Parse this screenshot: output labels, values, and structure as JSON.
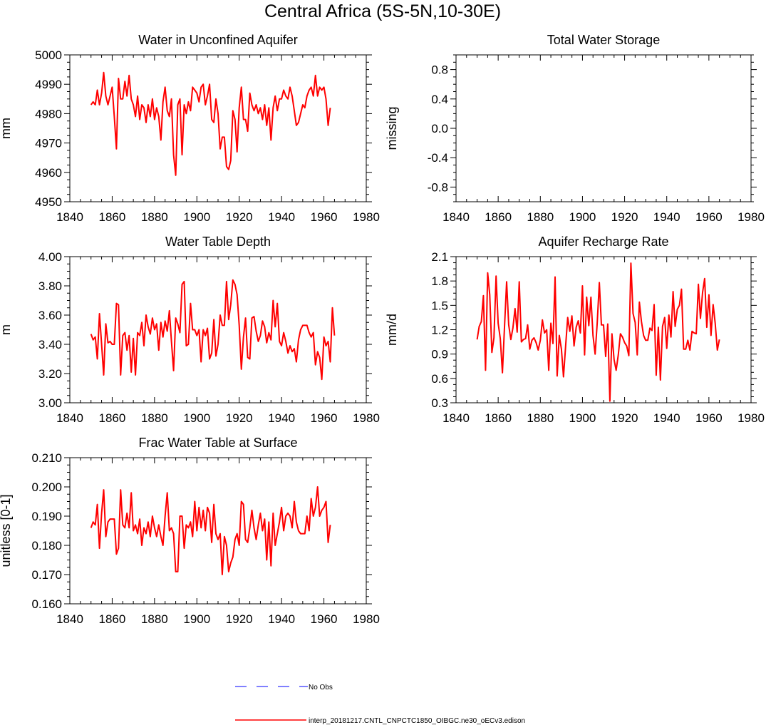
{
  "page_title": "Central Africa (5S-5N,10-30E)",
  "colors": {
    "model": "#ff0000",
    "obs": "#0000ff",
    "axis": "#000000"
  },
  "legend": {
    "obs_label": "No Obs",
    "model_label": "interp_20181217.CNTL_CNPCTC1850_OIBGC.ne30_oECv3.edison"
  },
  "chart_data": [
    {
      "id": "wa",
      "type": "line",
      "title": "Water in Unconfined Aquifer",
      "ylabel": "mm",
      "xlabel": "",
      "xlim": [
        1840,
        1980
      ],
      "ylim": [
        4950,
        5000
      ],
      "x_ticks": [
        1840,
        1860,
        1880,
        1900,
        1920,
        1940,
        1960,
        1980
      ],
      "x_tick_labels": [
        "1840",
        "1860",
        "1880",
        "1900",
        "1920",
        "1940",
        "1960",
        "1980"
      ],
      "y_ticks": [
        4950,
        4960,
        4970,
        4980,
        4990,
        5000
      ],
      "y_tick_labels": [
        "4950",
        "4960",
        "4970",
        "4980",
        "4990",
        "5000"
      ],
      "x_start": 1850,
      "series": [
        {
          "name": "interp_20181217.CNTL_CNPCTC1850_OIBGC.ne30_oECv3.edison",
          "values": [
            4983,
            4984,
            4983,
            4988,
            4983,
            4987,
            4994,
            4986,
            4983,
            4986,
            4989,
            4979,
            4968,
            4992,
            4985,
            4985,
            4991,
            4986,
            4993,
            4985,
            4983,
            4979,
            4986,
            4978,
            4983,
            4982,
            4977,
            4983,
            4979,
            4985,
            4978,
            4982,
            4979,
            4971,
            4984,
            4989,
            4981,
            4979,
            4985,
            4966,
            4959,
            4983,
            4985,
            4966,
            4983,
            4980,
            4984,
            4981,
            4989,
            4988,
            4987,
            4984,
            4989,
            4990,
            4983,
            4986,
            4990,
            4978,
            4977,
            4985,
            4980,
            4968,
            4972,
            4972,
            4962,
            4961,
            4964,
            4981,
            4978,
            4967,
            4982,
            4989,
            4978,
            4978,
            4974,
            4987,
            4983,
            4981,
            4983,
            4980,
            4982,
            4978,
            4983,
            4976,
            4982,
            4971,
            4982,
            4986,
            4981,
            4985,
            4985,
            4988,
            4986,
            4985,
            4989,
            4986,
            4981,
            4976,
            4977,
            4980,
            4983,
            4982,
            4986,
            4988,
            4989,
            4986,
            4993,
            4986,
            4989,
            4988,
            4989,
            4985,
            4976,
            4982
          ]
        }
      ]
    },
    {
      "id": "tws",
      "type": "line",
      "title": "Total Water Storage",
      "ylabel": "missing",
      "xlabel": "",
      "xlim": [
        1840,
        1980
      ],
      "ylim": [
        -1,
        1
      ],
      "x_ticks": [
        1840,
        1860,
        1880,
        1900,
        1920,
        1940,
        1960,
        1980
      ],
      "x_tick_labels": [
        "1840",
        "1860",
        "1880",
        "1900",
        "1920",
        "1940",
        "1960",
        "1980"
      ],
      "y_ticks": [
        -0.8,
        -0.4,
        0.0,
        0.4,
        0.8
      ],
      "y_tick_labels": [
        "-0.8",
        "-0.4",
        "0.0",
        "0.4",
        "0.8"
      ],
      "x_start": 1850,
      "series": []
    },
    {
      "id": "zwt",
      "type": "line",
      "title": "Water Table Depth",
      "ylabel": "m",
      "xlabel": "",
      "xlim": [
        1840,
        1980
      ],
      "ylim": [
        3.0,
        4.0
      ],
      "x_ticks": [
        1840,
        1860,
        1880,
        1900,
        1920,
        1940,
        1960,
        1980
      ],
      "x_tick_labels": [
        "1840",
        "1860",
        "1880",
        "1900",
        "1920",
        "1940",
        "1960",
        "1980"
      ],
      "y_ticks": [
        3.0,
        3.2,
        3.4,
        3.6,
        3.8,
        4.0
      ],
      "y_tick_labels": [
        "3.00",
        "3.20",
        "3.40",
        "3.60",
        "3.80",
        "4.00"
      ],
      "x_start": 1850,
      "series": [
        {
          "name": "interp_20181217.CNTL_CNPCTC1850_OIBGC.ne30_oECv3.edison",
          "values": [
            3.47,
            3.43,
            3.45,
            3.3,
            3.61,
            3.4,
            3.19,
            3.54,
            3.41,
            3.42,
            3.4,
            3.4,
            3.68,
            3.67,
            3.19,
            3.46,
            3.48,
            3.36,
            3.46,
            3.21,
            3.44,
            3.19,
            3.48,
            3.46,
            3.55,
            3.39,
            3.6,
            3.52,
            3.47,
            3.58,
            3.5,
            3.54,
            3.36,
            3.55,
            3.45,
            3.56,
            3.49,
            3.63,
            3.42,
            3.22,
            3.58,
            3.54,
            3.48,
            3.81,
            3.83,
            3.39,
            3.4,
            3.68,
            3.5,
            3.5,
            3.46,
            3.5,
            3.28,
            3.5,
            3.46,
            3.51,
            3.3,
            3.34,
            3.57,
            3.32,
            3.4,
            3.6,
            3.53,
            3.53,
            3.83,
            3.57,
            3.67,
            3.84,
            3.81,
            3.74,
            3.53,
            3.23,
            3.45,
            3.58,
            3.31,
            3.3,
            3.58,
            3.59,
            3.49,
            3.42,
            3.46,
            3.56,
            3.52,
            3.41,
            3.48,
            3.43,
            3.7,
            3.52,
            3.68,
            3.42,
            3.39,
            3.48,
            3.42,
            3.34,
            3.39,
            3.35,
            3.37,
            3.28,
            3.43,
            3.5,
            3.53,
            3.53,
            3.53,
            3.48,
            3.45,
            3.48,
            3.26,
            3.35,
            3.31,
            3.16,
            3.45,
            3.39,
            3.42,
            3.28,
            3.65,
            3.46
          ]
        }
      ]
    },
    {
      "id": "qcharge",
      "type": "line",
      "title": "Aquifer Recharge Rate",
      "ylabel": "mm/d",
      "xlabel": "",
      "xlim": [
        1840,
        1980
      ],
      "ylim": [
        0.3,
        2.1
      ],
      "x_ticks": [
        1840,
        1860,
        1880,
        1900,
        1920,
        1940,
        1960,
        1980
      ],
      "x_tick_labels": [
        "1840",
        "1860",
        "1880",
        "1900",
        "1920",
        "1940",
        "1960",
        "1980"
      ],
      "y_ticks": [
        0.3,
        0.6,
        0.9,
        1.2,
        1.5,
        1.8,
        2.1
      ],
      "y_tick_labels": [
        "0.3",
        "0.6",
        "0.9",
        "1.2",
        "1.5",
        "1.8",
        "2.1"
      ],
      "x_start": 1850,
      "series": [
        {
          "name": "interp_20181217.CNTL_CNPCTC1850_OIBGC.ne30_oECv3.edison",
          "values": [
            1.08,
            1.24,
            1.3,
            1.62,
            0.7,
            1.9,
            1.63,
            0.92,
            1.1,
            1.86,
            1.28,
            1.09,
            0.67,
            1.23,
            1.79,
            1.26,
            1.08,
            1.22,
            1.46,
            1.17,
            1.79,
            1.05,
            1.08,
            1.09,
            1.26,
            0.96,
            1.07,
            1.1,
            1.04,
            0.95,
            1.07,
            1.32,
            1.16,
            1.2,
            0.7,
            1.28,
            1.03,
            1.85,
            0.63,
            1.13,
            0.96,
            0.62,
            1.0,
            1.35,
            1.18,
            1.37,
            1.0,
            1.23,
            1.31,
            1.16,
            1.74,
            0.89,
            1.6,
            1.25,
            1.6,
            1.13,
            0.9,
            1.28,
            1.78,
            1.26,
            1.26,
            0.87,
            1.27,
            0.32,
            1.15,
            0.83,
            0.7,
            0.89,
            1.15,
            1.11,
            1.04,
            1.0,
            0.88,
            2.02,
            1.4,
            1.29,
            0.89,
            1.54,
            1.3,
            1.13,
            1.07,
            1.07,
            1.22,
            1.19,
            1.51,
            0.64,
            1.23,
            0.58,
            1.24,
            1.35,
            0.97,
            1.38,
            1.11,
            1.67,
            1.24,
            1.45,
            1.5,
            1.7,
            0.96,
            0.96,
            1.07,
            0.95,
            1.18,
            1.16,
            1.15,
            1.76,
            1.34,
            1.66,
            1.83,
            1.23,
            1.63,
            1.13,
            1.51,
            1.28,
            0.95,
            1.08
          ]
        }
      ]
    },
    {
      "id": "frwt",
      "type": "line",
      "title": "Frac Water Table at Surface",
      "ylabel": "unitless [0-1]",
      "xlabel": "",
      "xlim": [
        1840,
        1980
      ],
      "ylim": [
        0.16,
        0.21
      ],
      "x_ticks": [
        1840,
        1860,
        1880,
        1900,
        1920,
        1940,
        1960,
        1980
      ],
      "x_tick_labels": [
        "1840",
        "1860",
        "1880",
        "1900",
        "1920",
        "1940",
        "1960",
        "1980"
      ],
      "y_ticks": [
        0.16,
        0.17,
        0.18,
        0.19,
        0.2,
        0.21
      ],
      "y_tick_labels": [
        "0.160",
        "0.170",
        "0.180",
        "0.190",
        "0.200",
        "0.210"
      ],
      "x_start": 1850,
      "series": [
        {
          "name": "interp_20181217.CNTL_CNPCTC1850_OIBGC.ne30_oECv3.edison",
          "values": [
            0.186,
            0.188,
            0.187,
            0.194,
            0.179,
            0.191,
            0.199,
            0.183,
            0.188,
            0.189,
            0.189,
            0.189,
            0.177,
            0.179,
            0.199,
            0.187,
            0.186,
            0.191,
            0.186,
            0.198,
            0.185,
            0.187,
            0.184,
            0.189,
            0.18,
            0.186,
            0.184,
            0.188,
            0.183,
            0.19,
            0.186,
            0.183,
            0.187,
            0.183,
            0.18,
            0.19,
            0.198,
            0.185,
            0.186,
            0.184,
            0.171,
            0.171,
            0.19,
            0.19,
            0.179,
            0.187,
            0.186,
            0.188,
            0.183,
            0.195,
            0.185,
            0.193,
            0.186,
            0.192,
            0.185,
            0.193,
            0.191,
            0.181,
            0.194,
            0.184,
            0.182,
            0.184,
            0.17,
            0.183,
            0.18,
            0.171,
            0.174,
            0.176,
            0.182,
            0.184,
            0.18,
            0.195,
            0.194,
            0.182,
            0.181,
            0.186,
            0.192,
            0.186,
            0.182,
            0.187,
            0.191,
            0.185,
            0.189,
            0.175,
            0.188,
            0.173,
            0.191,
            0.18,
            0.184,
            0.188,
            0.193,
            0.185,
            0.19,
            0.191,
            0.19,
            0.186,
            0.195,
            0.188,
            0.185,
            0.184,
            0.184,
            0.184,
            0.19,
            0.185,
            0.196,
            0.19,
            0.193,
            0.2,
            0.19,
            0.192,
            0.193,
            0.195,
            0.181,
            0.187
          ]
        }
      ]
    }
  ]
}
